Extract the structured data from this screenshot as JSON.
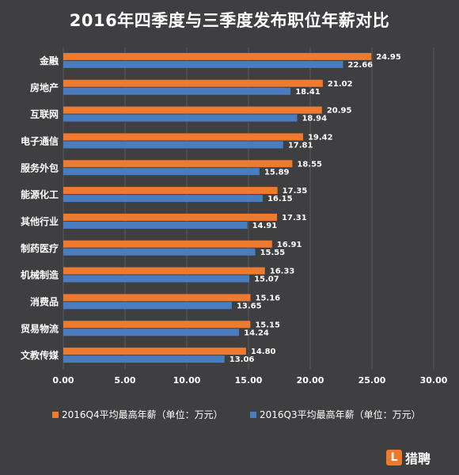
{
  "colors": {
    "background": "#3f3f41",
    "q4": "#ee7a2f",
    "q3": "#4a7cc0",
    "grid": "#5a5a5c",
    "text": "#ffffff"
  },
  "watermark": {
    "mark": "L",
    "text": "猎聘"
  },
  "chart_data": {
    "type": "bar",
    "orientation": "horizontal",
    "title": "2016年四季度与三季度发布职位年薪对比",
    "categories": [
      "金融",
      "房地产",
      "互联网",
      "电子通信",
      "服务外包",
      "能源化工",
      "其他行业",
      "制药医疗",
      "机械制造",
      "消费品",
      "贸易物流",
      "文教传媒"
    ],
    "series": [
      {
        "name": "2016Q4平均最高年薪（单位：万元）",
        "values": [
          24.95,
          21.02,
          20.95,
          19.42,
          18.55,
          17.35,
          17.31,
          16.91,
          16.33,
          15.16,
          15.15,
          14.8
        ]
      },
      {
        "name": "2016Q3平均最高年薪（单位：万元）",
        "values": [
          22.66,
          18.41,
          18.94,
          17.81,
          15.89,
          16.15,
          14.91,
          15.55,
          15.07,
          13.65,
          14.24,
          13.06
        ]
      }
    ],
    "value_labels": [
      [
        "24.95",
        "21.02",
        "20.95",
        "19.42",
        "18.55",
        "17.35",
        "17.31",
        "16.91",
        "16.33",
        "15.16",
        "15.15",
        "14.80"
      ],
      [
        "22.66",
        "18.41",
        "18.94",
        "17.81",
        "15.89",
        "16.15",
        "14.91",
        "15.55",
        "15.07",
        "13.65",
        "14.24",
        "13.06"
      ]
    ],
    "x_ticks": [
      "0.00",
      "5.00",
      "10.00",
      "15.00",
      "20.00",
      "25.00",
      "30.00"
    ],
    "xlim": [
      0,
      30
    ],
    "grid": true,
    "legend_position": "bottom"
  }
}
